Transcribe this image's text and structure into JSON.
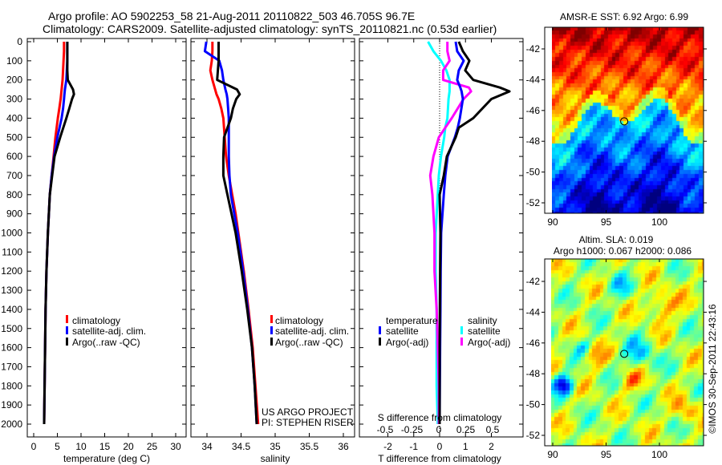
{
  "titles": {
    "line1": "Argo profile: AO 5902253_58 21-Aug-2011 20110822_503 46.705S 96.7E",
    "line2": "Climatology: CARS2009. Satellite-adjusted climatology: synTS_20110821.nc (0.53d earlier)"
  },
  "footer": {
    "project": "US ARGO PROJECT",
    "pi": "PI: STEPHEN RISER",
    "timestamp": "©IMOS 30-Sep-2011 22:43:16"
  },
  "colors": {
    "climatology": "#ff0000",
    "satellite": "#0000ff",
    "argo": "#000000",
    "s_satellite": "#00ffff",
    "s_argo": "#ff00ff"
  },
  "chart_data": [
    {
      "type": "line",
      "name": "temperature-profile",
      "xlabel": "temperature (deg C)",
      "xlim": [
        -1,
        31.5
      ],
      "xticks": [
        "0",
        "5",
        "10",
        "15",
        "20",
        "25",
        "30"
      ],
      "ylim": [
        2060,
        -10
      ],
      "yticks": [
        "0",
        "100",
        "200",
        "300",
        "400",
        "500",
        "600",
        "700",
        "800",
        "900",
        "1000",
        "1100",
        "1200",
        "1300",
        "1400",
        "1500",
        "1600",
        "1700",
        "1800",
        "1900",
        "2000"
      ],
      "legend": [
        "climatology",
        "satellite-adj. clim.",
        "Argo(..raw -QC)"
      ],
      "depth": [
        0,
        50,
        100,
        150,
        200,
        250,
        275,
        300,
        350,
        400,
        500,
        600,
        700,
        800,
        900,
        1000,
        1200,
        1400,
        1600,
        1800,
        2000
      ],
      "series": [
        {
          "name": "climatology",
          "values": [
            6.4,
            6.4,
            6.3,
            6.2,
            6.1,
            5.9,
            5.8,
            5.7,
            5.4,
            5.1,
            4.6,
            4.2,
            3.8,
            3.4,
            3.2,
            3.0,
            2.7,
            2.5,
            2.4,
            2.3,
            2.2
          ]
        },
        {
          "name": "satellite-adj. clim.",
          "values": [
            7.1,
            7.1,
            7.1,
            7.0,
            6.9,
            6.6,
            6.5,
            6.4,
            6.2,
            5.9,
            5.0,
            4.3,
            3.8,
            3.4,
            3.2,
            3.0,
            2.7,
            2.5,
            2.4,
            2.3,
            2.2
          ]
        },
        {
          "name": "Argo",
          "values": [
            7.1,
            7.1,
            7.1,
            7.1,
            7.2,
            8.3,
            8.5,
            8.1,
            7.5,
            6.9,
            5.6,
            4.4,
            3.9,
            3.4,
            3.2,
            3.0,
            2.7,
            2.5,
            2.4,
            2.3,
            2.2
          ]
        }
      ]
    },
    {
      "type": "line",
      "name": "salinity-profile",
      "xlabel": "salinity",
      "xlim": [
        33.77,
        36.15
      ],
      "xticks": [
        "34",
        "34.5",
        "35",
        "35.5",
        "36"
      ],
      "legend": [
        "climatology",
        "satellite-adj. clim.",
        "Argo(..raw -QC)"
      ],
      "depth": [
        0,
        50,
        100,
        150,
        200,
        250,
        275,
        300,
        350,
        400,
        500,
        600,
        700,
        800,
        900,
        1000,
        1200,
        1400,
        1600,
        1800,
        2000
      ],
      "series": [
        {
          "name": "climatology",
          "values": [
            34.08,
            34.08,
            34.07,
            34.05,
            34.08,
            34.12,
            34.14,
            34.17,
            34.21,
            34.24,
            34.26,
            34.28,
            34.32,
            34.37,
            34.42,
            34.46,
            34.54,
            34.61,
            34.67,
            34.71,
            34.75
          ]
        },
        {
          "name": "satellite-adj. clim.",
          "values": [
            33.99,
            33.97,
            34.18,
            34.22,
            34.24,
            34.27,
            34.29,
            34.3,
            34.31,
            34.32,
            34.32,
            34.32,
            34.33,
            34.35,
            34.4,
            34.45,
            34.53,
            34.6,
            34.66,
            34.7,
            34.73
          ]
        },
        {
          "name": "Argo",
          "values": [
            34.17,
            34.17,
            34.17,
            34.16,
            34.15,
            34.44,
            34.48,
            34.43,
            34.38,
            34.35,
            34.25,
            34.24,
            34.24,
            34.3,
            34.36,
            34.42,
            34.51,
            34.59,
            34.66,
            34.7,
            34.73
          ]
        }
      ]
    },
    {
      "type": "line",
      "name": "difference-profile",
      "xlabel": "T difference from climatology",
      "xlim": [
        -3.1,
        3.2
      ],
      "xticks": [
        "-2",
        "-1",
        "0",
        "1",
        "2"
      ],
      "x2label": "S difference from climatology",
      "x2lim": [
        -0.75,
        0.78
      ],
      "x2ticks": [
        "-0.5",
        "-0.25",
        "0",
        "0.25",
        "0.5"
      ],
      "legend": {
        "temperature_title": "temperature",
        "salinity_title": "salinity",
        "t_satellite": "satellite",
        "t_argo": "Argo(-adj)",
        "s_satellite": "satellite",
        "s_argo": "Argo(-adj)"
      },
      "depth": [
        0,
        50,
        100,
        150,
        200,
        240,
        260,
        300,
        400,
        450,
        500,
        600,
        700,
        800,
        1000,
        1200,
        1400,
        1600,
        1800,
        2000
      ],
      "series": [
        {
          "name": "T satellite",
          "axis": "T",
          "values": [
            0.62,
            0.68,
            0.93,
            0.74,
            0.68,
            0.8,
            0.85,
            0.9,
            0.78,
            0.7,
            0.59,
            0.31,
            0.22,
            0.16,
            0.06,
            0.04,
            0.03,
            0.02,
            0.01,
            0.0
          ]
        },
        {
          "name": "T Argo(-adj)",
          "axis": "T",
          "values": [
            0.74,
            0.9,
            1.15,
            0.99,
            1.3,
            2.33,
            2.7,
            2.0,
            1.3,
            0.74,
            0.62,
            0.28,
            0.16,
            0.0,
            0.03,
            0.02,
            0.01,
            0.0,
            0.0,
            0.0
          ]
        },
        {
          "name": "S satellite",
          "axis": "S",
          "values": [
            -0.1,
            -0.05,
            0.02,
            0.07,
            0.1,
            0.1,
            0.1,
            0.09,
            0.08,
            0.06,
            0.05,
            0.02,
            0.0,
            -0.01,
            -0.03,
            -0.03,
            -0.02,
            -0.02,
            -0.02,
            -0.01
          ]
        },
        {
          "name": "S Argo(-adj)",
          "axis": "S",
          "values": [
            0.08,
            0.08,
            0.1,
            0.04,
            0.04,
            0.28,
            0.3,
            0.23,
            0.12,
            0.06,
            0.0,
            -0.05,
            -0.08,
            -0.06,
            -0.04,
            -0.04,
            -0.02,
            -0.01,
            0.0,
            0.0
          ]
        }
      ]
    },
    {
      "type": "heatmap",
      "name": "sst-map",
      "title": "AMSR-E SST: 6.92 Argo: 6.99",
      "xlim": [
        89.3,
        104.2
      ],
      "ylim": [
        -52.7,
        -40.6
      ],
      "xticks": [
        "90",
        "95",
        "100"
      ],
      "yticks": [
        "-42",
        "-44",
        "-46",
        "-48",
        "-50",
        "-52"
      ],
      "argo_position": {
        "lon": 96.7,
        "lat": -46.705
      }
    },
    {
      "type": "heatmap",
      "name": "sla-map",
      "title": "Altim. SLA: 0.019",
      "subtitle": "Argo h1000: 0.067 h2000: 0.086",
      "xlim": [
        89.3,
        104.2
      ],
      "ylim": [
        -52.7,
        -40.6
      ],
      "xticks": [
        "90",
        "95",
        "100"
      ],
      "yticks": [
        "-42",
        "-44",
        "-46",
        "-48",
        "-50",
        "-52"
      ],
      "argo_position": {
        "lon": 96.7,
        "lat": -46.705
      }
    }
  ]
}
